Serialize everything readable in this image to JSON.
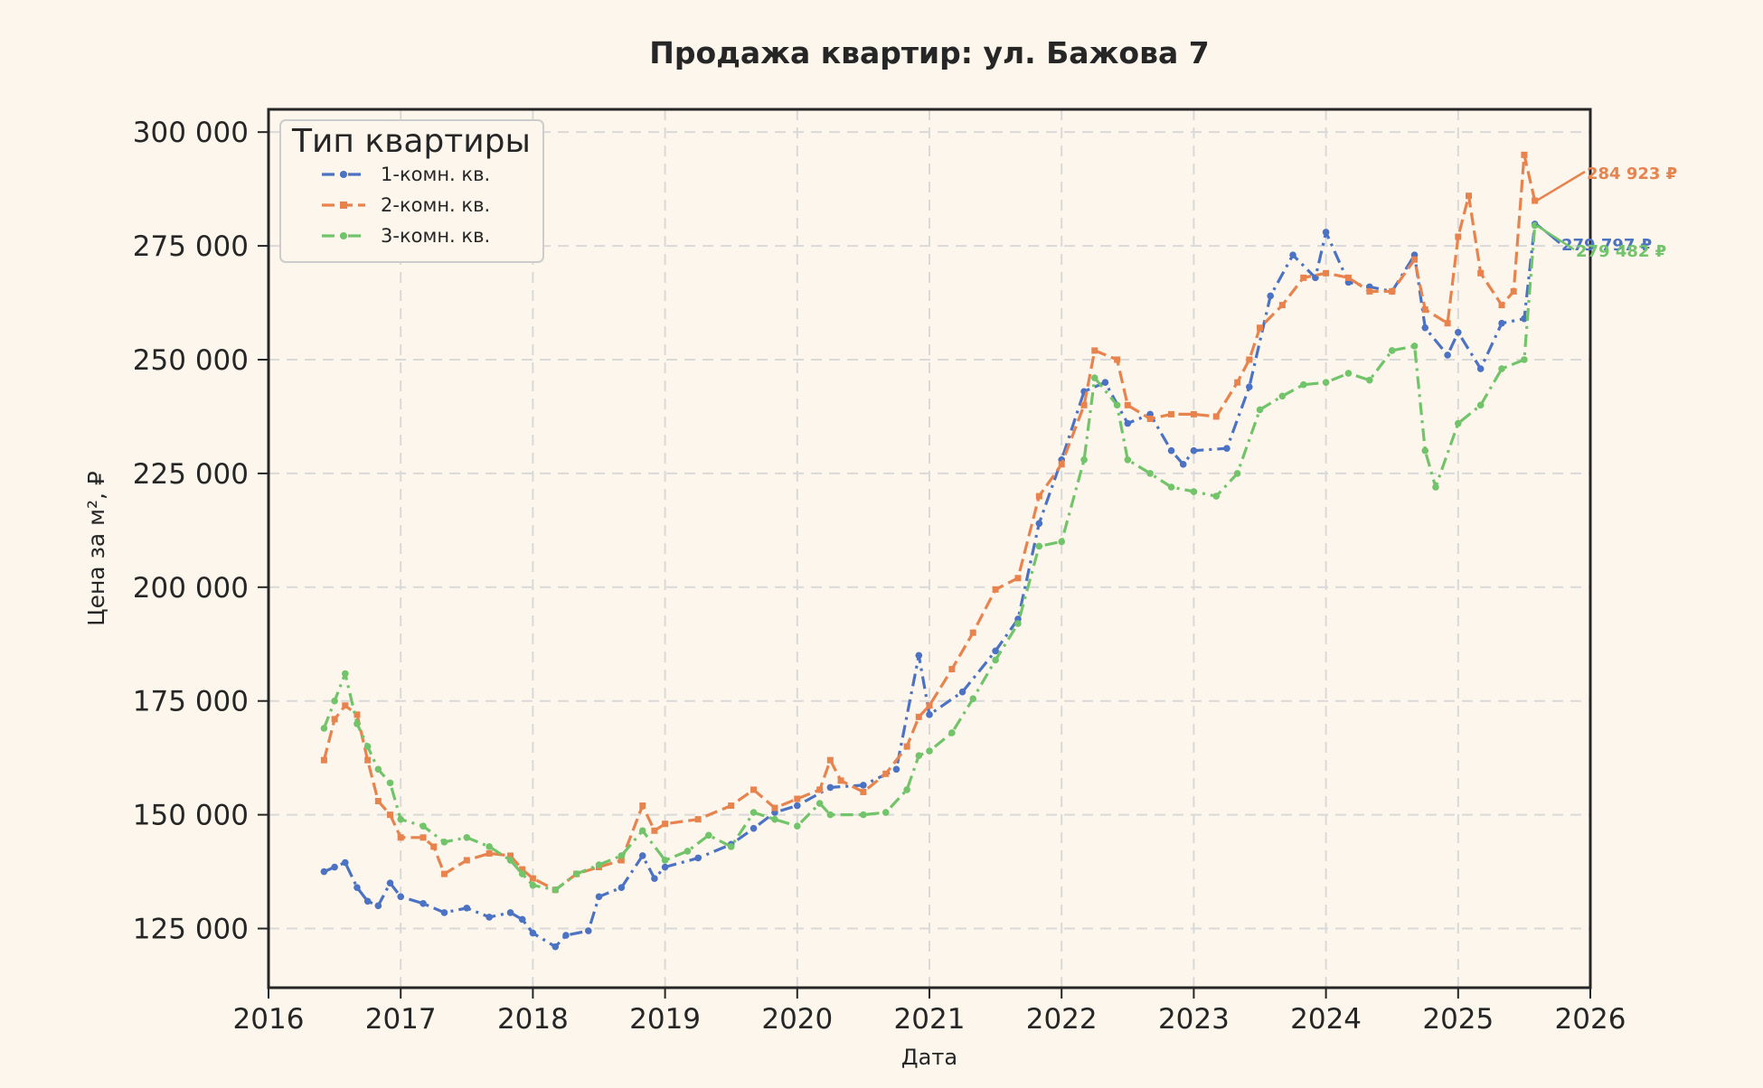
{
  "chart_data": {
    "type": "line",
    "title": "Продажа квартир: ул. Бажова 7",
    "xlabel": "Дата",
    "ylabel": "Цена за м², ₽",
    "xlim": [
      2016,
      2026
    ],
    "ylim": [
      112000,
      305000
    ],
    "x_ticks": [
      2016,
      2017,
      2018,
      2019,
      2020,
      2021,
      2022,
      2023,
      2024,
      2025,
      2026
    ],
    "y_ticks": [
      125000,
      150000,
      175000,
      200000,
      225000,
      250000,
      275000,
      300000
    ],
    "y_tick_labels": [
      "125 000",
      "150 000",
      "175 000",
      "200 000",
      "225 000",
      "250 000",
      "275 000",
      "300 000"
    ],
    "grid": true,
    "legend": {
      "title": "Тип квартиры",
      "placement": "top-left"
    },
    "series": [
      {
        "name": "1-комн. кв.",
        "color": "#4c72c4",
        "dash": "dashdot",
        "marker": "circle",
        "points": [
          [
            2016.42,
            137500
          ],
          [
            2016.5,
            138500
          ],
          [
            2016.58,
            139500
          ],
          [
            2016.67,
            134000
          ],
          [
            2016.75,
            131000
          ],
          [
            2016.83,
            130000
          ],
          [
            2016.92,
            135000
          ],
          [
            2017.0,
            132000
          ],
          [
            2017.17,
            130500
          ],
          [
            2017.33,
            128500
          ],
          [
            2017.5,
            129500
          ],
          [
            2017.67,
            127500
          ],
          [
            2017.83,
            128500
          ],
          [
            2017.92,
            127000
          ],
          [
            2018.0,
            124000
          ],
          [
            2018.17,
            121000
          ],
          [
            2018.25,
            123500
          ],
          [
            2018.42,
            124500
          ],
          [
            2018.5,
            132000
          ],
          [
            2018.67,
            134000
          ],
          [
            2018.83,
            141000
          ],
          [
            2018.92,
            136000
          ],
          [
            2019.0,
            138500
          ],
          [
            2019.25,
            140500
          ],
          [
            2019.5,
            143500
          ],
          [
            2019.67,
            147000
          ],
          [
            2019.83,
            150500
          ],
          [
            2020.0,
            152000
          ],
          [
            2020.25,
            156000
          ],
          [
            2020.5,
            156500
          ],
          [
            2020.75,
            160000
          ],
          [
            2020.92,
            185000
          ],
          [
            2021.0,
            172000
          ],
          [
            2021.25,
            177000
          ],
          [
            2021.5,
            186000
          ],
          [
            2021.67,
            193000
          ],
          [
            2021.83,
            214000
          ],
          [
            2022.0,
            228000
          ],
          [
            2022.17,
            243000
          ],
          [
            2022.33,
            245000
          ],
          [
            2022.5,
            236000
          ],
          [
            2022.67,
            238000
          ],
          [
            2022.83,
            230000
          ],
          [
            2022.92,
            227000
          ],
          [
            2023.0,
            230000
          ],
          [
            2023.25,
            230500
          ],
          [
            2023.42,
            244000
          ],
          [
            2023.58,
            264000
          ],
          [
            2023.75,
            273000
          ],
          [
            2023.92,
            268000
          ],
          [
            2024.0,
            278000
          ],
          [
            2024.17,
            267000
          ],
          [
            2024.33,
            266000
          ],
          [
            2024.5,
            265000
          ],
          [
            2024.67,
            273000
          ],
          [
            2024.75,
            257000
          ],
          [
            2024.92,
            251000
          ],
          [
            2025.0,
            256000
          ],
          [
            2025.17,
            248000
          ],
          [
            2025.33,
            258000
          ],
          [
            2025.5,
            259000
          ],
          [
            2025.58,
            279797
          ]
        ],
        "end_label": "279 797 ₽"
      },
      {
        "name": "2-комн. кв.",
        "color": "#e8834e",
        "dash": "dashed",
        "marker": "square",
        "points": [
          [
            2016.42,
            162000
          ],
          [
            2016.5,
            171000
          ],
          [
            2016.58,
            174000
          ],
          [
            2016.67,
            172000
          ],
          [
            2016.75,
            162000
          ],
          [
            2016.83,
            153000
          ],
          [
            2016.92,
            150000
          ],
          [
            2017.0,
            145000
          ],
          [
            2017.17,
            145000
          ],
          [
            2017.25,
            143000
          ],
          [
            2017.33,
            137000
          ],
          [
            2017.5,
            140000
          ],
          [
            2017.67,
            141500
          ],
          [
            2017.83,
            141000
          ],
          [
            2017.92,
            138000
          ],
          [
            2018.0,
            136000
          ],
          [
            2018.17,
            133500
          ],
          [
            2018.33,
            137000
          ],
          [
            2018.5,
            138500
          ],
          [
            2018.67,
            140000
          ],
          [
            2018.83,
            152000
          ],
          [
            2018.92,
            146500
          ],
          [
            2019.0,
            148000
          ],
          [
            2019.25,
            149000
          ],
          [
            2019.5,
            152000
          ],
          [
            2019.67,
            155500
          ],
          [
            2019.83,
            151500
          ],
          [
            2020.0,
            153500
          ],
          [
            2020.17,
            155500
          ],
          [
            2020.25,
            162000
          ],
          [
            2020.33,
            157500
          ],
          [
            2020.5,
            155000
          ],
          [
            2020.67,
            159000
          ],
          [
            2020.83,
            165000
          ],
          [
            2020.92,
            171500
          ],
          [
            2021.0,
            174000
          ],
          [
            2021.17,
            182000
          ],
          [
            2021.33,
            190000
          ],
          [
            2021.5,
            199500
          ],
          [
            2021.67,
            202000
          ],
          [
            2021.83,
            220000
          ],
          [
            2022.0,
            227000
          ],
          [
            2022.17,
            240000
          ],
          [
            2022.25,
            252000
          ],
          [
            2022.42,
            250000
          ],
          [
            2022.5,
            240000
          ],
          [
            2022.67,
            237000
          ],
          [
            2022.83,
            238000
          ],
          [
            2023.0,
            238000
          ],
          [
            2023.17,
            237500
          ],
          [
            2023.33,
            245000
          ],
          [
            2023.42,
            250000
          ],
          [
            2023.5,
            257000
          ],
          [
            2023.67,
            262000
          ],
          [
            2023.83,
            268000
          ],
          [
            2024.0,
            269000
          ],
          [
            2024.17,
            268000
          ],
          [
            2024.33,
            265000
          ],
          [
            2024.5,
            265000
          ],
          [
            2024.67,
            272000
          ],
          [
            2024.75,
            261000
          ],
          [
            2024.92,
            258000
          ],
          [
            2025.0,
            277000
          ],
          [
            2025.08,
            286000
          ],
          [
            2025.17,
            269000
          ],
          [
            2025.33,
            262000
          ],
          [
            2025.42,
            265000
          ],
          [
            2025.5,
            295000
          ],
          [
            2025.58,
            284923
          ]
        ],
        "end_label": "284 923 ₽"
      },
      {
        "name": "3-комн. кв.",
        "color": "#72c46a",
        "dash": "dashdot",
        "marker": "circle",
        "points": [
          [
            2016.42,
            169000
          ],
          [
            2016.5,
            175000
          ],
          [
            2016.58,
            181000
          ],
          [
            2016.67,
            170000
          ],
          [
            2016.75,
            165000
          ],
          [
            2016.83,
            160000
          ],
          [
            2016.92,
            157000
          ],
          [
            2017.0,
            149000
          ],
          [
            2017.17,
            147500
          ],
          [
            2017.33,
            144000
          ],
          [
            2017.5,
            145000
          ],
          [
            2017.67,
            143000
          ],
          [
            2017.83,
            140000
          ],
          [
            2017.92,
            137000
          ],
          [
            2018.0,
            134500
          ],
          [
            2018.17,
            133500
          ],
          [
            2018.33,
            137000
          ],
          [
            2018.5,
            139000
          ],
          [
            2018.67,
            141000
          ],
          [
            2018.83,
            146500
          ],
          [
            2019.0,
            140000
          ],
          [
            2019.17,
            142000
          ],
          [
            2019.33,
            145500
          ],
          [
            2019.5,
            143000
          ],
          [
            2019.67,
            150500
          ],
          [
            2019.83,
            149000
          ],
          [
            2020.0,
            147500
          ],
          [
            2020.17,
            152500
          ],
          [
            2020.25,
            150000
          ],
          [
            2020.5,
            150000
          ],
          [
            2020.67,
            150500
          ],
          [
            2020.83,
            155500
          ],
          [
            2020.92,
            163000
          ],
          [
            2021.0,
            164000
          ],
          [
            2021.17,
            168000
          ],
          [
            2021.33,
            175500
          ],
          [
            2021.5,
            184000
          ],
          [
            2021.67,
            192000
          ],
          [
            2021.83,
            209000
          ],
          [
            2022.0,
            210000
          ],
          [
            2022.17,
            228000
          ],
          [
            2022.25,
            246000
          ],
          [
            2022.42,
            240000
          ],
          [
            2022.5,
            228000
          ],
          [
            2022.67,
            225000
          ],
          [
            2022.83,
            222000
          ],
          [
            2023.0,
            221000
          ],
          [
            2023.17,
            220000
          ],
          [
            2023.33,
            225000
          ],
          [
            2023.5,
            239000
          ],
          [
            2023.67,
            242000
          ],
          [
            2023.83,
            244500
          ],
          [
            2024.0,
            245000
          ],
          [
            2024.17,
            247000
          ],
          [
            2024.33,
            245500
          ],
          [
            2024.5,
            252000
          ],
          [
            2024.67,
            253000
          ],
          [
            2024.75,
            230000
          ],
          [
            2024.83,
            222000
          ],
          [
            2025.0,
            236000
          ],
          [
            2025.17,
            240000
          ],
          [
            2025.33,
            248000
          ],
          [
            2025.5,
            250000
          ],
          [
            2025.58,
            279482
          ]
        ],
        "end_label": "279 482 ₽"
      }
    ]
  }
}
